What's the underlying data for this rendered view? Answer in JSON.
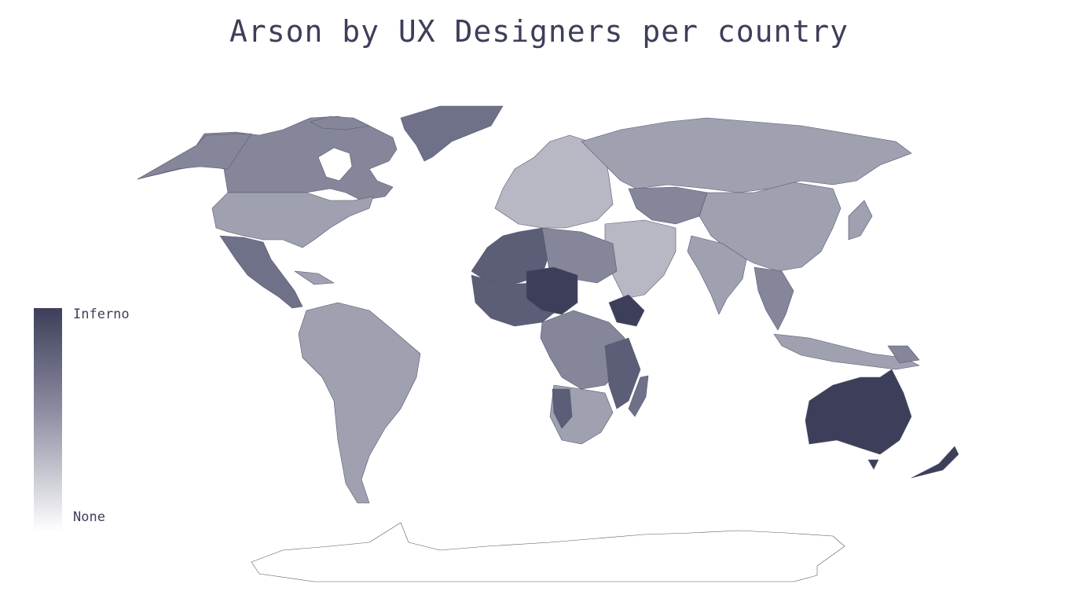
{
  "title": "Arson by UX Designers per country",
  "legend": {
    "max_label": "Inferno",
    "min_label": "None",
    "color_high": "#3d3f5a",
    "color_low": "#ffffff"
  },
  "scale": {
    "inferno": "#3d3f5a",
    "high": "#5c5e77",
    "mid_high": "#6f7189",
    "mid": "#85869a",
    "mid_low": "#9fa0b0",
    "low": "#b7b8c4",
    "none": "#ffffff"
  }
}
